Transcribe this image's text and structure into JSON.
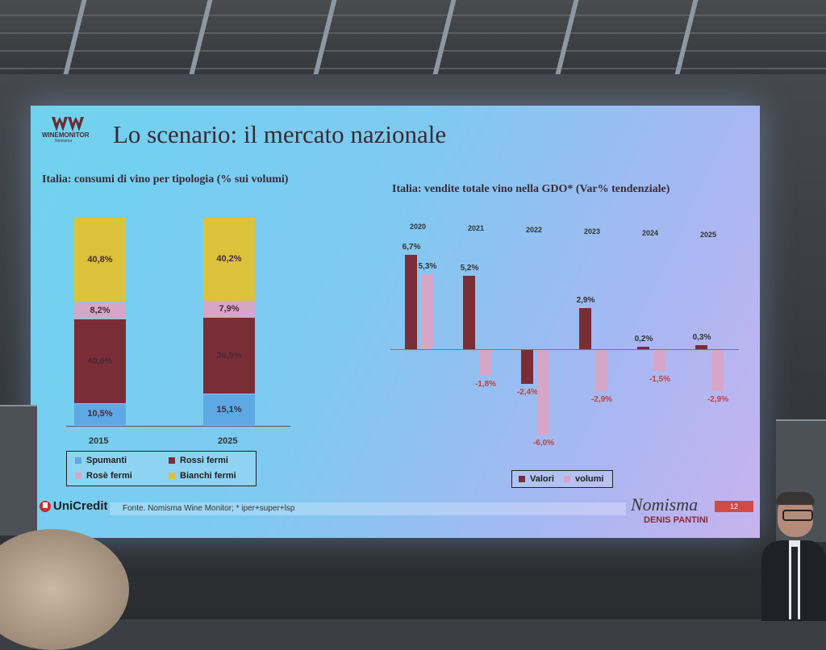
{
  "slide": {
    "logo": {
      "name": "WINEMONITOR",
      "sub": "Nomisma"
    },
    "title": "Lo scenario: il mercato nazionale",
    "left_chart": {
      "title": "Italia: consumi di vino per tipologia (% sui volumi)",
      "years": [
        "2015",
        "2025"
      ],
      "stacks": [
        {
          "year": "2015",
          "segments": [
            {
              "name": "Spumanti",
              "value": 10.5,
              "label": "10,5%"
            },
            {
              "name": "Rossi fermi",
              "value": 40.6,
              "label": "40,6%"
            },
            {
              "name": "Rosè fermi",
              "value": 8.2,
              "label": "8,2%"
            },
            {
              "name": "Bianchi fermi",
              "value": 40.8,
              "label": "40,8%"
            }
          ]
        },
        {
          "year": "2025",
          "segments": [
            {
              "name": "Spumanti",
              "value": 15.1,
              "label": "15,1%"
            },
            {
              "name": "Rossi fermi",
              "value": 36.9,
              "label": "36,9%"
            },
            {
              "name": "Rosè fermi",
              "value": 7.9,
              "label": "7,9%"
            },
            {
              "name": "Bianchi fermi",
              "value": 40.2,
              "label": "40,2%"
            }
          ]
        }
      ],
      "legend": [
        "Spumanti",
        "Rossi fermi",
        "Rosè fermi",
        "Bianchi fermi"
      ],
      "colors": {
        "Spumanti": "#5ea8e6",
        "Rossi fermi": "#7a2d37",
        "Rosè fermi": "#d6a6c9",
        "Bianchi fermi": "#dcc23a"
      }
    },
    "right_chart": {
      "title": "Italia: vendite totale vino nella GDO* (Var% tendenziale)",
      "years": [
        "2020",
        "2021",
        "2022",
        "2023",
        "2024",
        "2025"
      ],
      "valori": [
        6.7,
        5.2,
        -2.4,
        2.9,
        0.2,
        0.3
      ],
      "valori_labels": [
        "6,7%",
        "5,2%",
        "-2,4%",
        "2,9%",
        "0,2%",
        "0,3%"
      ],
      "volumi": [
        5.3,
        -1.8,
        -6.0,
        -2.9,
        -1.5,
        -2.9
      ],
      "volumi_labels": [
        "5,3%",
        "-1,8%",
        "-6,0%",
        "-2,9%",
        "-1,5%",
        "-2,9%"
      ],
      "legend": [
        "Valori",
        "volumi"
      ],
      "colors": {
        "Valori": "#7a2d37",
        "volumi": "#d6a6c9"
      }
    },
    "footer": {
      "bank": "UniCredit",
      "source": "Fonte. Nomisma Wine Monitor; * iper+super+lsp",
      "brand": "Nomisma",
      "speaker": "DENIS PANTINI",
      "page": "12"
    }
  }
}
